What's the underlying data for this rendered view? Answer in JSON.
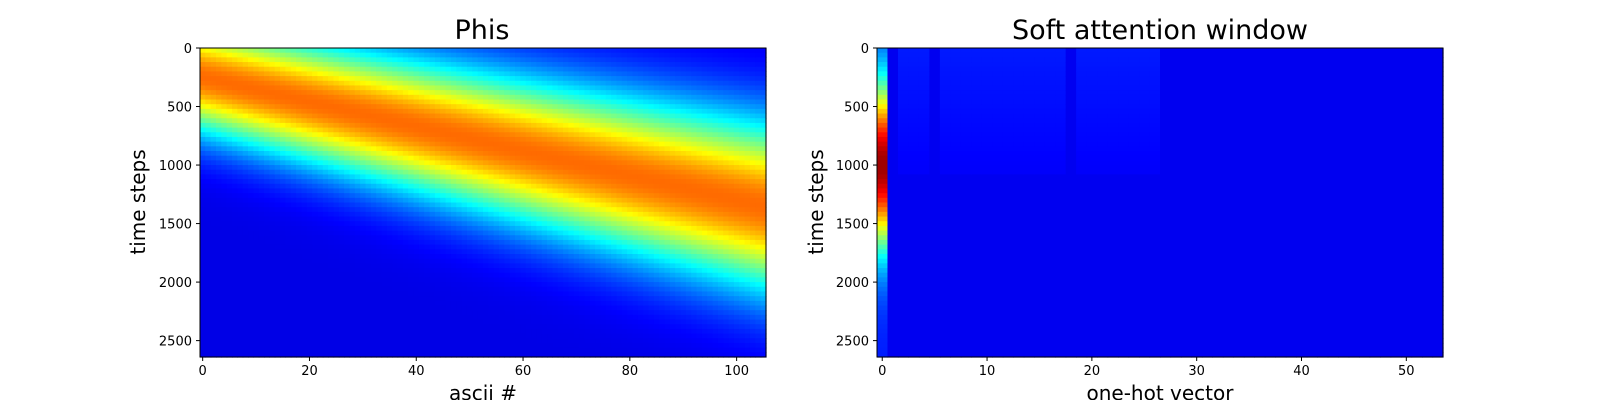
{
  "chart_data": [
    {
      "type": "heatmap",
      "title": "Phis",
      "xlabel": "ascii #",
      "ylabel": "time steps",
      "colormap": "jet",
      "xlim": [
        -0.5,
        105.5
      ],
      "ylim": [
        2640,
        0
      ],
      "xticks": [
        0,
        20,
        40,
        60,
        80,
        100
      ],
      "yticks": [
        0,
        500,
        1000,
        1500,
        2000,
        2500
      ],
      "band": {
        "description_x": "character index",
        "center_start": 250,
        "center_slope_per_char": 10.5,
        "width_start": 340,
        "width_growth_per_char": 1.6,
        "peak_value": 0.77
      }
    },
    {
      "type": "heatmap",
      "title": "Soft attention window",
      "xlabel": "one-hot vector",
      "ylabel": "time steps",
      "colormap": "jet",
      "xlim": [
        -0.5,
        53.5
      ],
      "ylim": [
        2640,
        0
      ],
      "xticks": [
        0,
        10,
        20,
        30,
        40,
        50
      ],
      "yticks": [
        0,
        500,
        1000,
        1500,
        2000,
        2500
      ],
      "column0": {
        "peak_time": 1000,
        "peak_value": 0.97,
        "width": 620
      },
      "faint_columns": [
        2,
        3,
        4,
        6,
        7,
        8,
        9,
        10,
        11,
        12,
        13,
        14,
        15,
        16,
        17,
        19,
        20,
        21,
        22,
        23,
        24,
        25,
        26
      ]
    }
  ]
}
